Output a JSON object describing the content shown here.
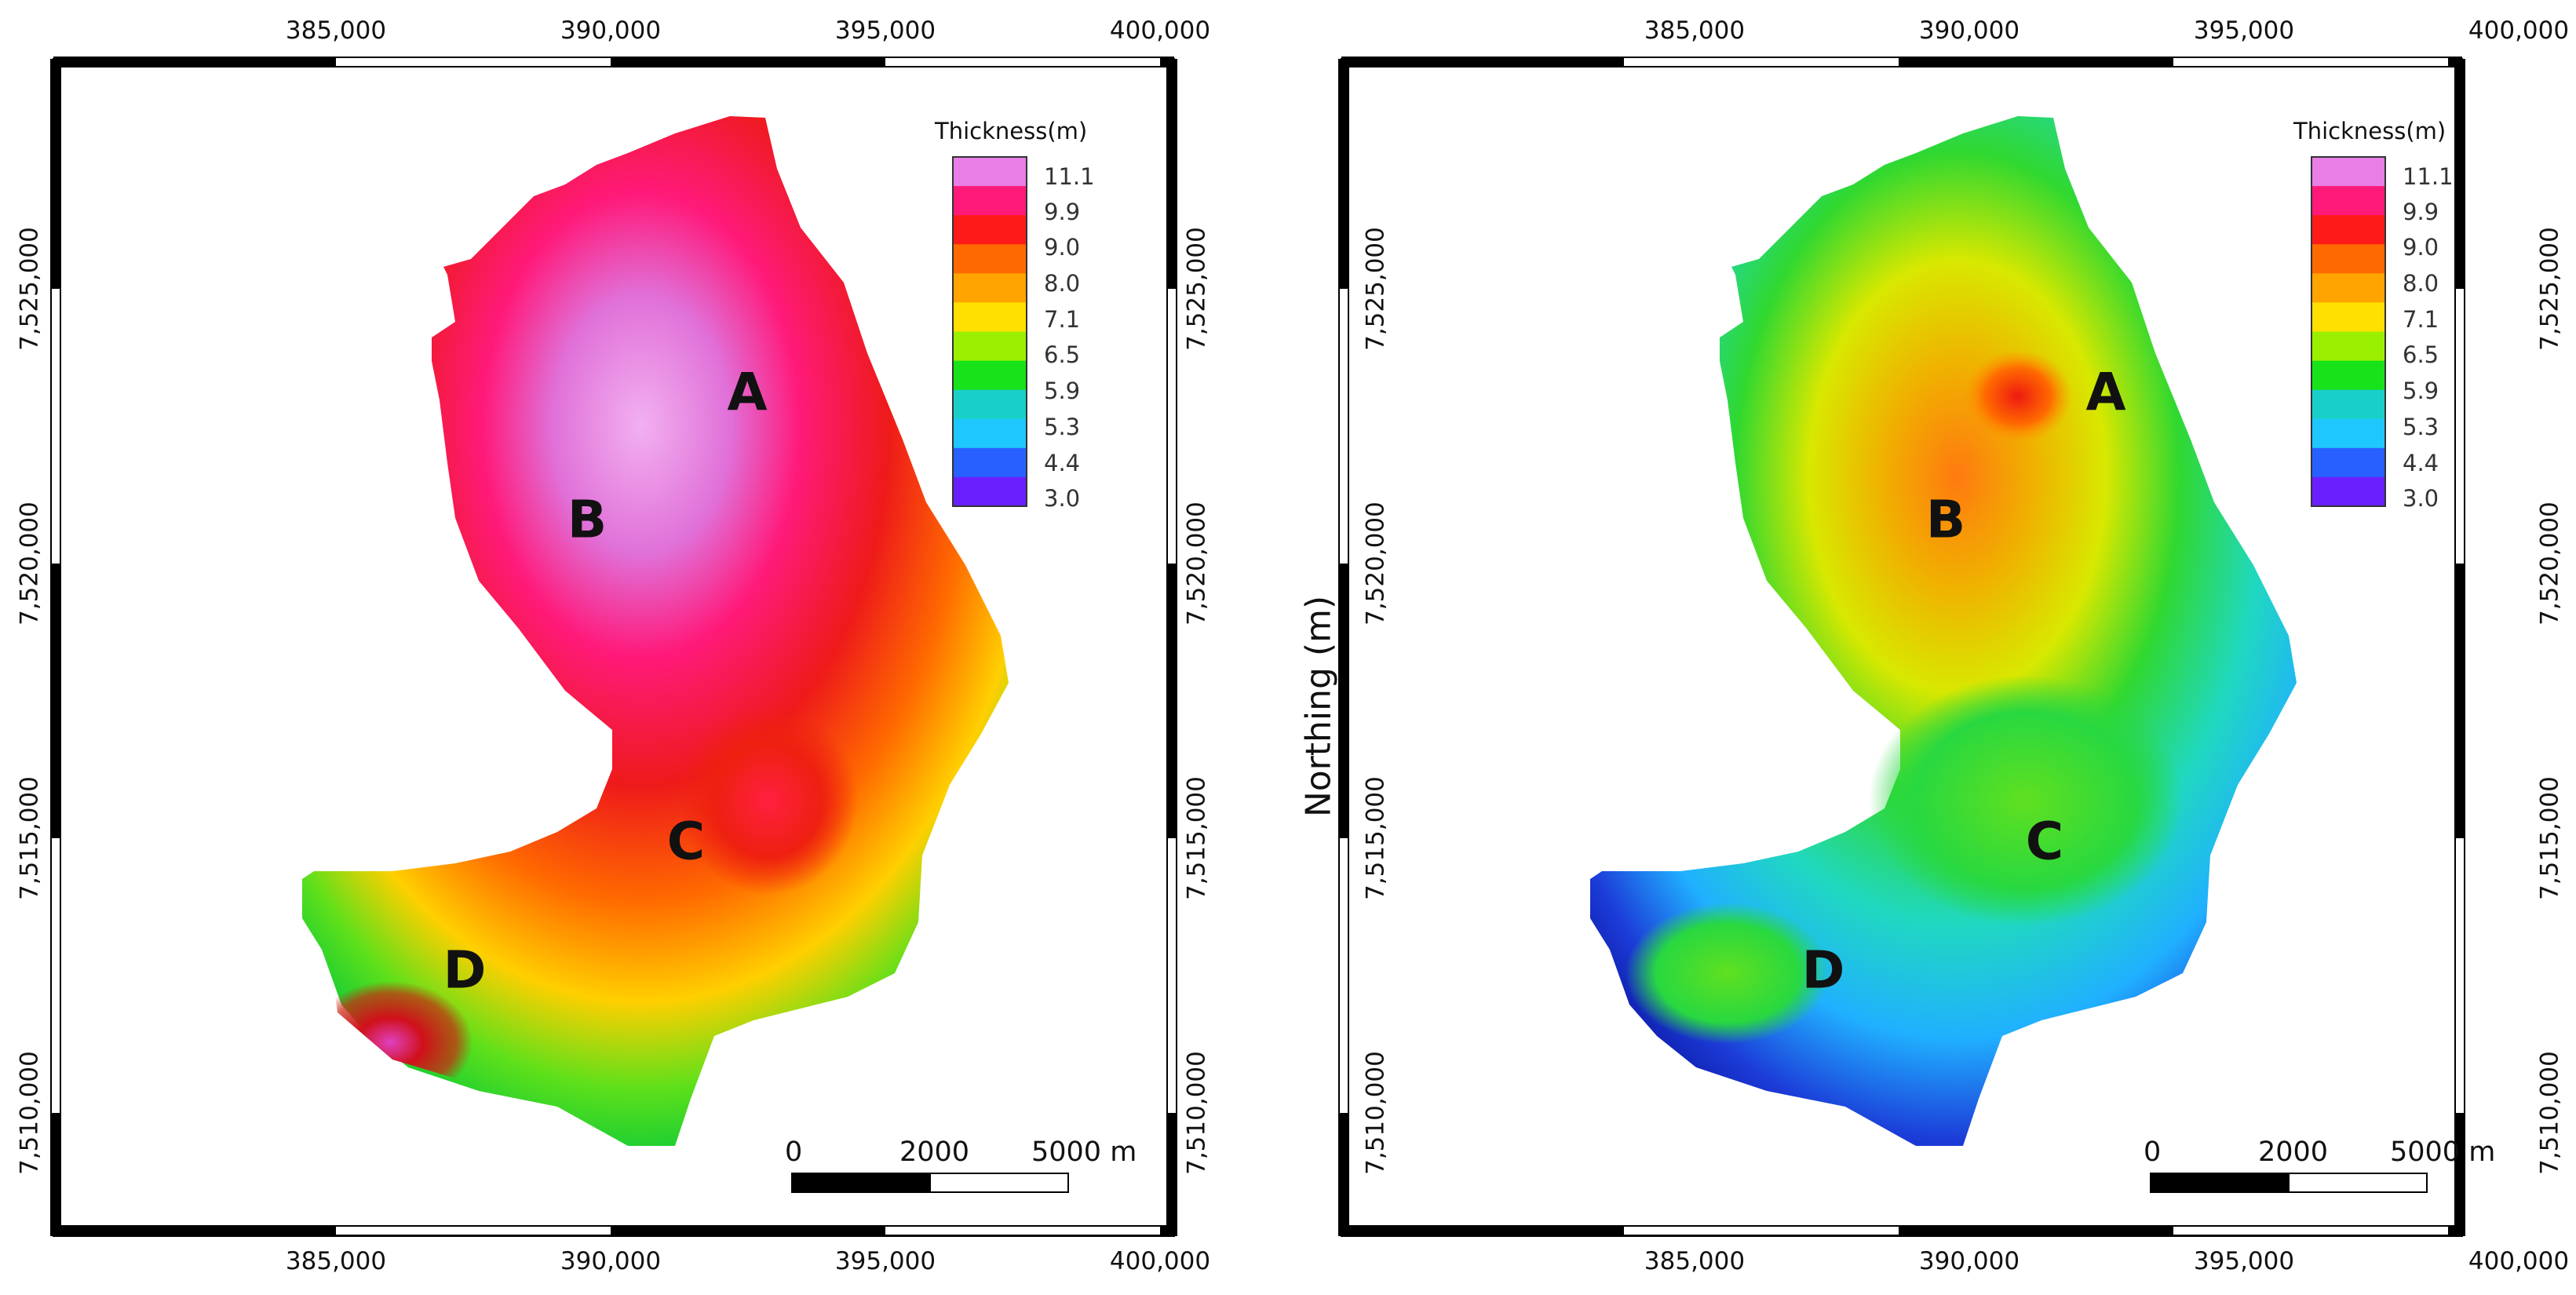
{
  "panels": [
    {
      "name": "left-map",
      "colormap": "high-thickness surface (magenta-red-orange)",
      "legend": {
        "title": "Thickness(m)",
        "labels": [
          "11.1",
          "9.9",
          "9.0",
          "8.0",
          "7.1",
          "6.5",
          "5.9",
          "5.3",
          "4.4",
          "3.0"
        ]
      },
      "regions": [
        "A",
        "B",
        "C",
        "D"
      ],
      "scale_bar": {
        "labels": [
          "0",
          "2000",
          "5000 m"
        ]
      }
    },
    {
      "name": "right-map",
      "colormap": "lower-thickness surface (blue-green-orange)",
      "legend": {
        "title": "Thickness(m)",
        "labels": [
          "11.1",
          "9.9",
          "9.0",
          "8.0",
          "7.1",
          "6.5",
          "5.9",
          "5.3",
          "4.4",
          "3.0"
        ]
      },
      "regions": [
        "A",
        "B",
        "C",
        "D"
      ],
      "scale_bar": {
        "labels": [
          "0",
          "2000",
          "5000 m"
        ]
      }
    }
  ],
  "axes": {
    "x_ticks": [
      "385,000",
      "390,000",
      "395,000",
      "400,000"
    ],
    "y_ticks": [
      "7,525,000",
      "7,520,000",
      "7,515,000",
      "7,510,000"
    ],
    "y_label": "Northing (m)"
  },
  "legend_colors": [
    "#e87ee6",
    "#ff1a7a",
    "#ff1a1a",
    "#ff6a00",
    "#ffa400",
    "#ffe000",
    "#9af000",
    "#18e21a",
    "#18d0c8",
    "#1fc7ff",
    "#2860ff",
    "#6a1fff"
  ],
  "colors": {
    "frame": "#000000",
    "background": "#ffffff"
  }
}
